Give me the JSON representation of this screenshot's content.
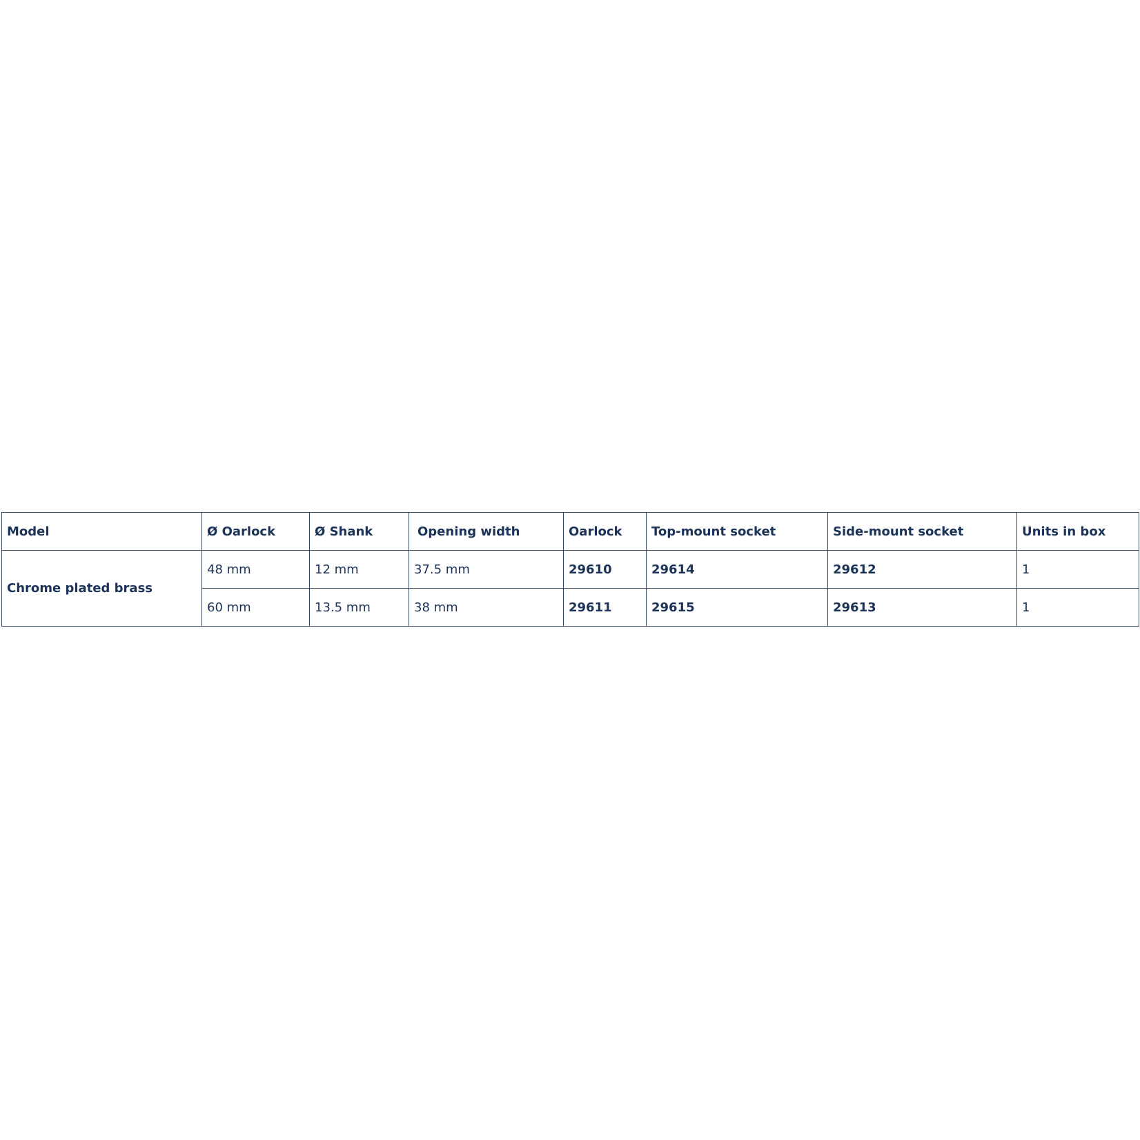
{
  "table": {
    "headers": [
      "Model",
      "Ø Oarlock",
      "Ø Shank",
      "Opening width",
      "Oarlock",
      "Top-mount socket",
      "Side-mount socket",
      "Units in box"
    ],
    "model": "Chrome plated brass",
    "rows": [
      [
        "48 mm",
        "12 mm",
        "37.5 mm",
        "29610",
        "29614",
        "29612",
        "1"
      ],
      [
        "60 mm",
        "13.5 mm",
        "38 mm",
        "29611",
        "29615",
        "29613",
        "1"
      ]
    ]
  },
  "colors": {
    "text": "#1b3358",
    "border": "#34475c"
  }
}
